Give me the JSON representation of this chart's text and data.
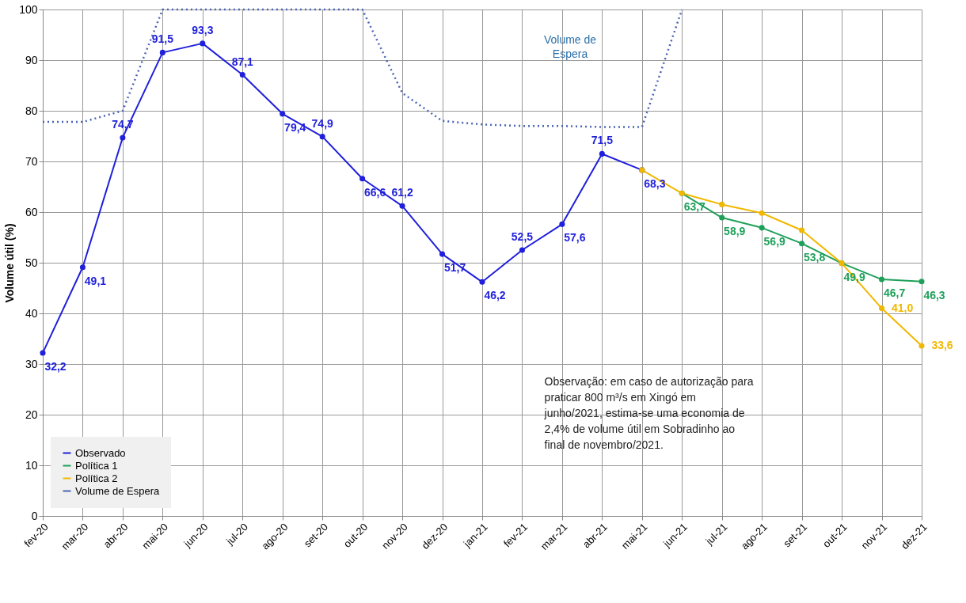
{
  "chart_data": {
    "type": "line",
    "ylabel": "Volume útil (%)",
    "categories": [
      "fev-20",
      "mar-20",
      "abr-20",
      "mai-20",
      "jun-20",
      "jul-20",
      "ago-20",
      "set-20",
      "out-20",
      "nov-20",
      "dez-20",
      "jan-21",
      "fev-21",
      "mar-21",
      "abr-21",
      "mai-21",
      "jun-21",
      "jul-21",
      "ago-21",
      "set-21",
      "out-21",
      "nov-21",
      "dez-21"
    ],
    "series": [
      {
        "name": "Observado",
        "color": "#1f1fdc",
        "marker": "circle",
        "line_style": "solid",
        "values": [
          32.2,
          49.1,
          74.7,
          91.5,
          93.3,
          87.1,
          79.4,
          74.9,
          66.6,
          61.2,
          51.7,
          46.2,
          52.5,
          57.6,
          71.5,
          68.3,
          null,
          null,
          null,
          null,
          null,
          null,
          null
        ],
        "value_labels": [
          "32,2",
          "49,1",
          "74,7",
          "91,5",
          "93,3",
          "87,1",
          "79,4",
          "74,9",
          "66,6",
          "61,2",
          "51,7",
          "46,2",
          "52,5",
          "57,6",
          "71,5",
          "68,3",
          null,
          null,
          null,
          null,
          null,
          null,
          null
        ]
      },
      {
        "name": "Política 1",
        "color": "#1fa05a",
        "marker": "circle",
        "line_style": "solid",
        "values": [
          null,
          null,
          null,
          null,
          null,
          null,
          null,
          null,
          null,
          null,
          null,
          null,
          null,
          null,
          null,
          null,
          63.7,
          58.9,
          56.9,
          53.8,
          49.9,
          46.7,
          46.3
        ],
        "value_labels": [
          null,
          null,
          null,
          null,
          null,
          null,
          null,
          null,
          null,
          null,
          null,
          null,
          null,
          null,
          null,
          null,
          "63,7",
          "58,9",
          "56,9",
          "53,8",
          "49,9",
          "46,7",
          "46,3"
        ]
      },
      {
        "name": "Política 2",
        "color": "#f0b800",
        "marker": "circle",
        "line_style": "solid",
        "values": [
          null,
          null,
          null,
          null,
          null,
          null,
          null,
          null,
          null,
          null,
          null,
          null,
          null,
          null,
          null,
          68.3,
          63.7,
          61.5,
          59.8,
          56.4,
          49.9,
          41.0,
          33.6
        ],
        "value_labels": [
          null,
          null,
          null,
          null,
          null,
          null,
          null,
          null,
          null,
          null,
          null,
          null,
          null,
          null,
          null,
          null,
          null,
          null,
          null,
          null,
          null,
          "41,0",
          "33,6"
        ]
      },
      {
        "name": "Volume de Espera",
        "color": "#4a64b4",
        "marker": "none",
        "line_style": "dotted",
        "values": [
          77.8,
          77.8,
          80,
          100,
          100,
          100,
          100,
          100,
          100,
          83.5,
          78,
          77.3,
          77,
          77,
          76.8,
          76.8,
          100,
          null,
          null,
          null,
          null,
          null,
          null
        ]
      }
    ],
    "ylim": [
      0,
      100
    ],
    "yticks": [
      0,
      10,
      20,
      30,
      40,
      50,
      60,
      70,
      80,
      90,
      100
    ],
    "grid": true,
    "legend": "bottom left",
    "annotations": [
      "Volume de Espera",
      "Observação: em caso de autorização para praticar 800 m³/s em Xingó em junho/2021, estima-se uma economia de 2,4% de volume útil em Sobradinho ao final de novembro/2021."
    ]
  }
}
